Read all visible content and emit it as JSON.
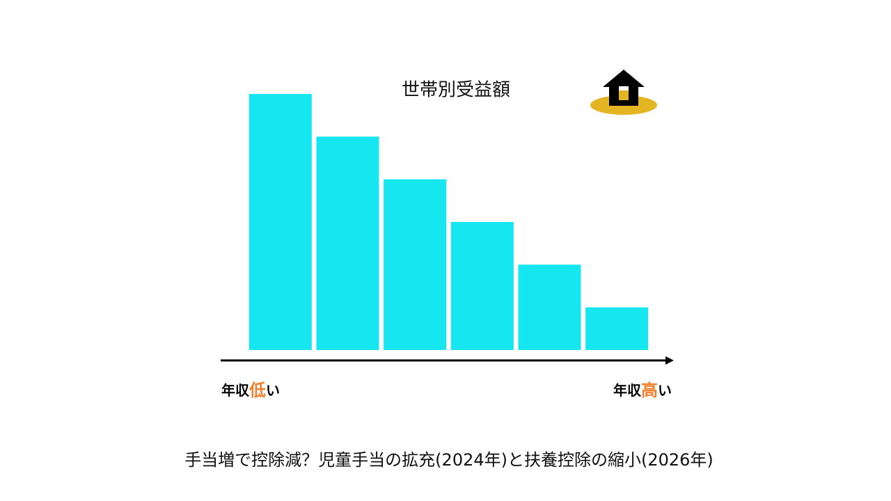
{
  "chart_data": {
    "type": "bar",
    "title": "世帯別受益額",
    "categories": [
      null,
      null,
      null,
      null,
      null,
      null
    ],
    "values": [
      6,
      5,
      4,
      3,
      2,
      1
    ],
    "color": "#15e6f0",
    "ylim": [
      0,
      6
    ],
    "x_axis_ends": [
      [
        "年収",
        "低",
        "い"
      ],
      [
        "年収",
        "高",
        "い"
      ]
    ],
    "accent_color": "#f07f2e"
  },
  "caption": "手当増で控除減？児童手当の拡充(2024年)と扶養控除の縮小(2026年)"
}
